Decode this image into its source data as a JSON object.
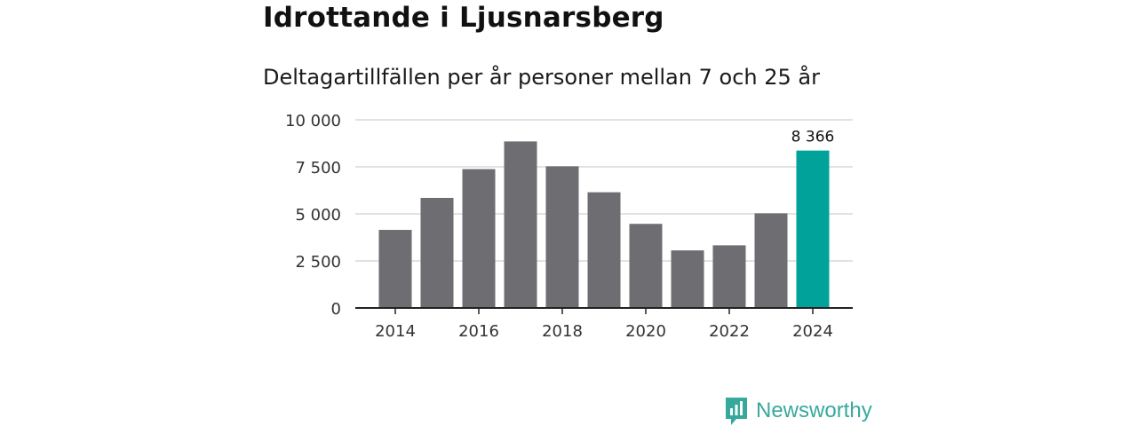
{
  "title": "Idrottande i Ljusnarsberg",
  "subtitle": "Deltagartillfällen per år personer mellan 7 och 25 år",
  "brand": {
    "name": "Newsworthy",
    "icon": "newsworthy-logo-icon"
  },
  "colors": {
    "bar": "#6e6d72",
    "highlight": "#00a29a",
    "grid": "#d9d9d9",
    "axis": "#222222",
    "brand": "#37a99c"
  },
  "chart_data": {
    "type": "bar",
    "title": "Idrottande i Ljusnarsberg",
    "subtitle": "Deltagartillfällen per år personer mellan 7 och 25 år",
    "xlabel": "",
    "ylabel": "",
    "categories": [
      "2014",
      "2015",
      "2016",
      "2017",
      "2018",
      "2019",
      "2020",
      "2021",
      "2022",
      "2023",
      "2024"
    ],
    "values": [
      4150,
      5850,
      7380,
      8850,
      7530,
      6150,
      4470,
      3060,
      3330,
      5030,
      8366
    ],
    "highlight_index": 10,
    "data_labels": [
      {
        "index": 10,
        "text": "8 366"
      }
    ],
    "ylim": [
      0,
      10000
    ],
    "y_ticks": [
      0,
      2500,
      5000,
      7500,
      10000
    ],
    "y_tick_labels": [
      "0",
      "2 500",
      "5 000",
      "7 500",
      "10 000"
    ],
    "x_tick_labels": [
      "2014",
      "2016",
      "2018",
      "2020",
      "2022",
      "2024"
    ],
    "grid": true,
    "legend": "none"
  }
}
